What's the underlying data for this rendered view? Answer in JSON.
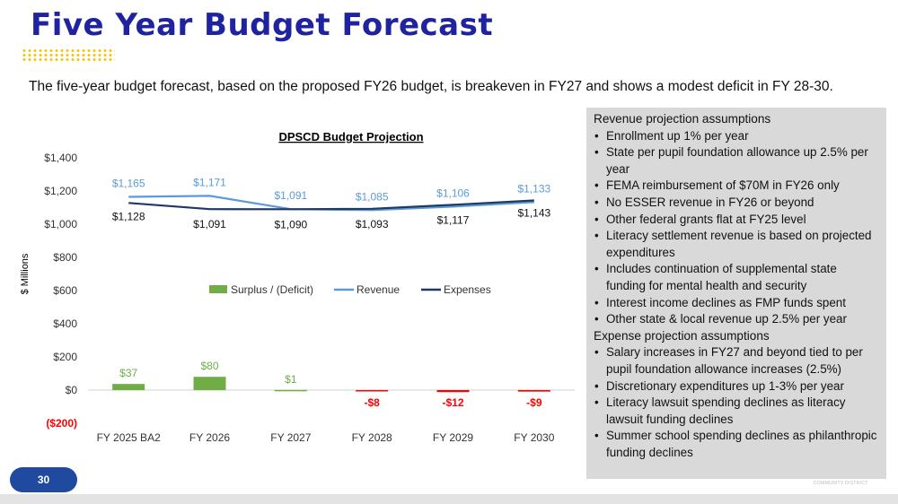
{
  "slide": {
    "title": "Five Year Budget Forecast",
    "subtitle": "The five-year budget forecast, based on the proposed FY26 budget, is breakeven in FY27 and shows a modest deficit in FY 28-30.",
    "page_number": "30",
    "logo_text": "COMMUNITY DISTRICT"
  },
  "colors": {
    "title": "#1f23a0",
    "surplus_positive": "#70ad47",
    "surplus_negative": "#ff0000",
    "revenue": "#5b9bd5",
    "expenses": "#1f3864",
    "panel_bg": "#d9d9d9",
    "badge": "#1f4aa0"
  },
  "assumptions": {
    "revenue_heading": "Revenue projection assumptions",
    "revenue_items": [
      "Enrollment up 1% per year",
      "State per pupil foundation allowance up 2.5% per year",
      "FEMA reimbursement of $70M in FY26 only",
      "No ESSER revenue in FY26 or beyond",
      "Other federal grants flat at FY25 level",
      "Literacy settlement revenue is based on projected expenditures",
      "Includes continuation of supplemental state funding for mental health and security",
      "Interest income declines as FMP funds spent",
      "Other state & local revenue up 2.5% per year"
    ],
    "expense_heading": "Expense projection assumptions",
    "expense_items": [
      "Salary increases in FY27 and beyond tied to per pupil foundation allowance increases (2.5%)",
      "Discretionary expenditures up 1-3% per year",
      "Literacy lawsuit spending declines as literacy lawsuit funding declines",
      "Summer school spending declines as philanthropic funding declines"
    ]
  },
  "chart_data": {
    "type": "bar",
    "title": "DPSCD Budget Projection",
    "ylabel": "$ Millions",
    "xlabel": "",
    "categories": [
      "FY 2025 BA2",
      "FY 2026",
      "FY 2027",
      "FY 2028",
      "FY 2029",
      "FY 2030"
    ],
    "ylim": [
      -200,
      1400
    ],
    "yticks": [
      1400,
      1200,
      1000,
      800,
      600,
      400,
      200,
      0,
      -200
    ],
    "ytick_labels": [
      "$1,400",
      "$1,200",
      "$1,000",
      "$800",
      "$600",
      "$400",
      "$200",
      "$0",
      "($200)"
    ],
    "legend_position": "center",
    "grid": false,
    "series": [
      {
        "name": "Surplus / (Deficit)",
        "type": "bar",
        "values": [
          37,
          80,
          1,
          -8,
          -12,
          -9
        ],
        "labels": [
          "$37",
          "$80",
          "$1",
          "-$8",
          "-$12",
          "-$9"
        ]
      },
      {
        "name": "Revenue",
        "type": "line",
        "values": [
          1165,
          1171,
          1091,
          1085,
          1106,
          1133
        ],
        "labels": [
          "$1,165",
          "$1,171",
          "$1,091",
          "$1,085",
          "$1,106",
          "$1,133"
        ]
      },
      {
        "name": "Expenses",
        "type": "line",
        "values": [
          1128,
          1091,
          1090,
          1093,
          1117,
          1143
        ],
        "labels": [
          "$1,128",
          "$1,091",
          "$1,090",
          "$1,093",
          "$1,117",
          "$1,143"
        ]
      }
    ]
  }
}
